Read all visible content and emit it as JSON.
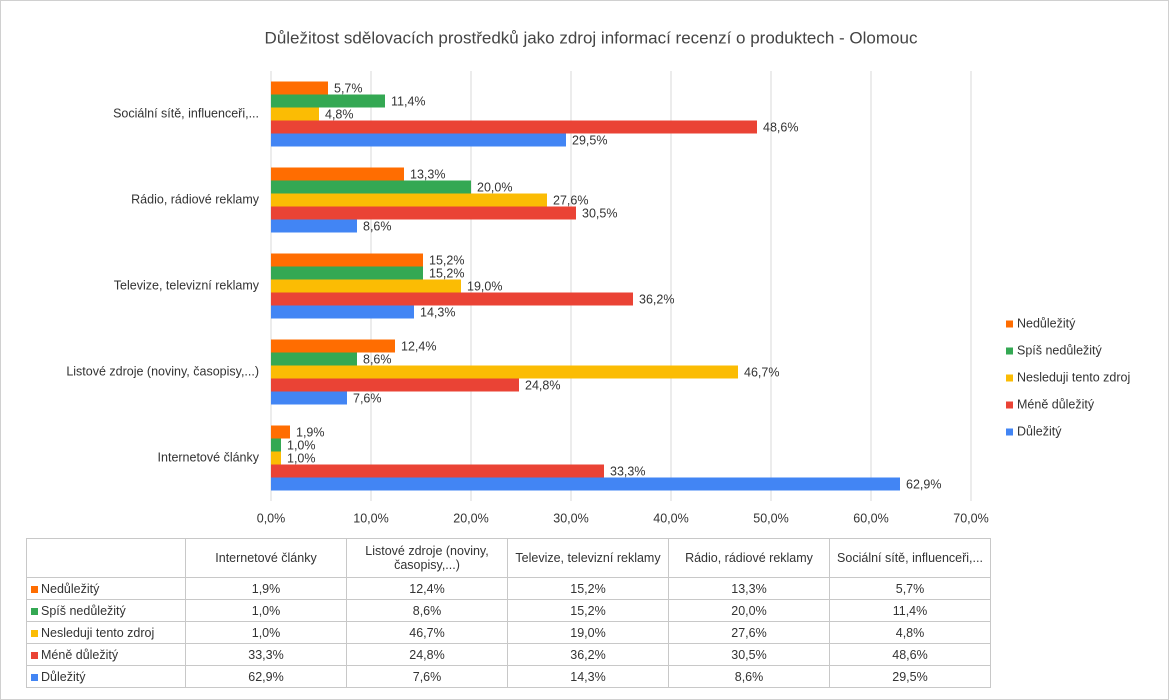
{
  "chart_data": {
    "type": "hbar",
    "title": "Důležitost sdělovacích prostředků jako zdroj informací recenzí o produktech - Olomouc",
    "categories": [
      "Internetové články",
      "Listové zdroje (noviny, časopisy,...)",
      "Televize, televizní reklamy",
      "Rádio, rádiové reklamy",
      "Sociální sítě, influenceři,..."
    ],
    "series": [
      {
        "name": "Nedůležitý",
        "color": "#ff6d01",
        "values": [
          1.9,
          12.4,
          15.2,
          13.3,
          5.7
        ],
        "value_labels": [
          "1,9%",
          "12,4%",
          "15,2%",
          "13,3%",
          "5,7%"
        ]
      },
      {
        "name": "Spíš nedůležitý",
        "color": "#34a853",
        "values": [
          1.0,
          8.6,
          15.2,
          20.0,
          11.4
        ],
        "value_labels": [
          "1,0%",
          "8,6%",
          "15,2%",
          "20,0%",
          "11,4%"
        ]
      },
      {
        "name": "Nesleduji tento zdroj",
        "color": "#fbbc04",
        "values": [
          1.0,
          46.7,
          19.0,
          27.6,
          4.8
        ],
        "value_labels": [
          "1,0%",
          "46,7%",
          "19,0%",
          "27,6%",
          "4,8%"
        ]
      },
      {
        "name": "Méně důležitý",
        "color": "#ea4335",
        "values": [
          33.3,
          24.8,
          36.2,
          30.5,
          48.6
        ],
        "value_labels": [
          "33,3%",
          "24,8%",
          "36,2%",
          "30,5%",
          "48,6%"
        ]
      },
      {
        "name": "Důležitý",
        "color": "#4285f4",
        "values": [
          62.9,
          7.6,
          14.3,
          8.6,
          29.5
        ],
        "value_labels": [
          "62,9%",
          "7,6%",
          "14,3%",
          "8,6%",
          "29,5%"
        ]
      }
    ],
    "xlim": [
      0,
      70
    ],
    "xticks": [
      {
        "value": 0,
        "label": "0,0%"
      },
      {
        "value": 10,
        "label": "10,0%"
      },
      {
        "value": 20,
        "label": "20,0%"
      },
      {
        "value": 30,
        "label": "30,0%"
      },
      {
        "value": 40,
        "label": "40,0%"
      },
      {
        "value": 50,
        "label": "50,0%"
      },
      {
        "value": 60,
        "label": "60,0%"
      },
      {
        "value": 70,
        "label": "70,0%"
      }
    ],
    "grid": true,
    "legend": "right",
    "data_table": true
  }
}
